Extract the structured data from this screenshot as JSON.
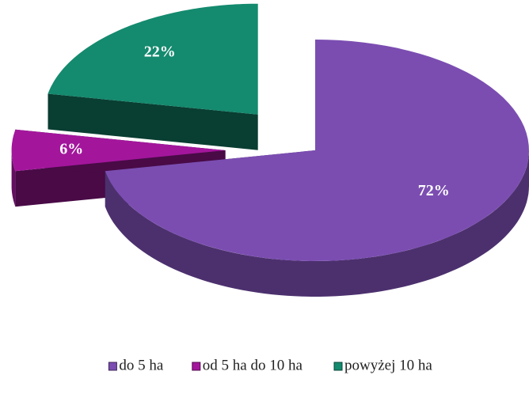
{
  "chart_data": {
    "type": "pie",
    "categories": [
      "do 5 ha",
      "od 5 ha do 10 ha",
      "powyżej 10 ha"
    ],
    "values": [
      72,
      6,
      22
    ],
    "value_labels": [
      "72%",
      "6%",
      "22%"
    ],
    "colors": [
      "#7b4db1",
      "#a3169c",
      "#148a6e"
    ],
    "legend": "bottom"
  }
}
